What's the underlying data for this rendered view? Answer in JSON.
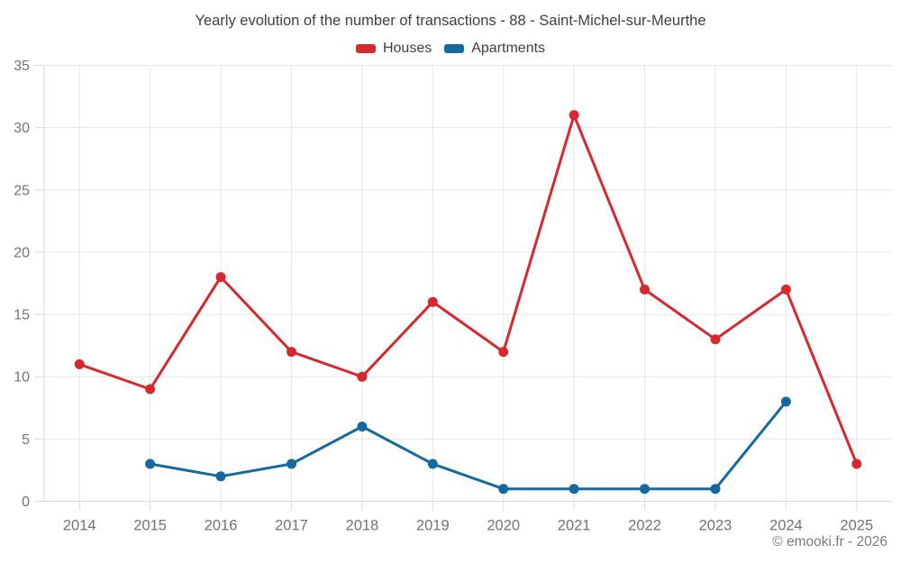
{
  "title": "Yearly evolution of the number of transactions - 88 - Saint-Michel-sur-Meurthe",
  "legend": {
    "items": [
      {
        "label": "Houses",
        "color": "#d7282d"
      },
      {
        "label": "Apartments",
        "color": "#126aa0"
      }
    ]
  },
  "footer": {
    "credit": "© emooki.fr - 2026"
  },
  "chart_data": {
    "type": "line",
    "title": "Yearly evolution of the number of transactions - 88 - Saint-Michel-sur-Meurthe",
    "categories": [
      "2014",
      "2015",
      "2016",
      "2017",
      "2018",
      "2019",
      "2020",
      "2021",
      "2022",
      "2023",
      "2024",
      "2025"
    ],
    "series": [
      {
        "name": "Houses",
        "color": "#d7282d",
        "values": [
          11,
          9,
          18,
          12,
          10,
          16,
          12,
          31,
          17,
          13,
          17,
          3
        ]
      },
      {
        "name": "Apartments",
        "color": "#126aa0",
        "values": [
          null,
          3,
          2,
          3,
          6,
          3,
          1,
          1,
          1,
          1,
          8,
          null
        ]
      }
    ],
    "ylim": [
      0,
      35
    ],
    "yticks": [
      0,
      5,
      10,
      15,
      20,
      25,
      30,
      35
    ],
    "xlabel": "",
    "ylabel": "",
    "grid": true,
    "legend_position": "top",
    "grid_color": "#e6e6e6",
    "axis_color": "#d9d9d9",
    "tick_label_color": "#737373"
  }
}
